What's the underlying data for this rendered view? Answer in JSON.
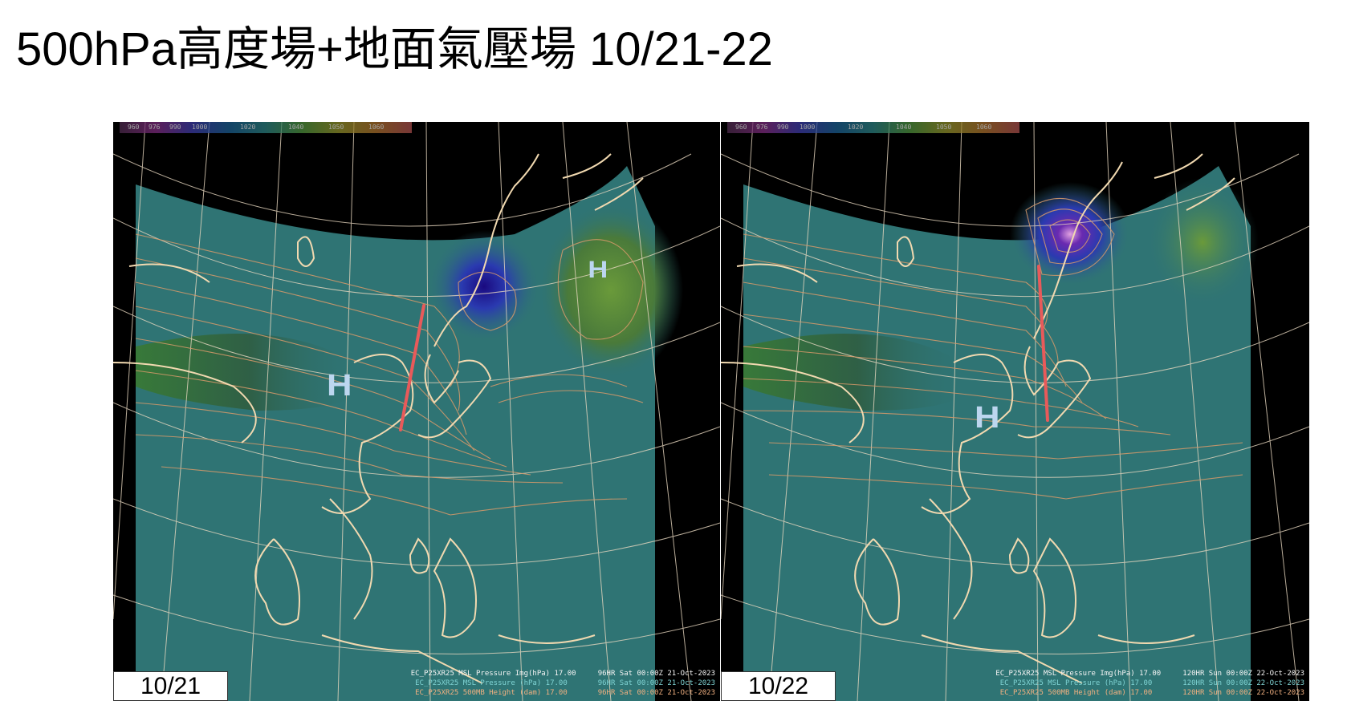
{
  "title": "500hPa高度場+地面氣壓場 10/21-22",
  "panels": [
    {
      "date_label": "10/21",
      "footer": [
        "EC_P25XR25 MSL Pressure Img(hPa) 17.00     96HR Sat 00:00Z 21-Oct-2023",
        "EC_P25XR25 MSL Pressure (hPa) 17.00       96HR Sat 00:00Z 21-Oct-2023",
        "EC_P25XR25 500MB Height (dam) 17.00       96HR Sat 00:00Z 21-Oct-2023"
      ],
      "annotations": [
        "H",
        "H"
      ],
      "colorbar": [
        "960",
        "976",
        "990",
        "1000",
        "1020",
        "1040",
        "1050",
        "1060"
      ]
    },
    {
      "date_label": "10/22",
      "footer": [
        "EC_P25XR25 MSL Pressure Img(hPa) 17.00     120HR Sun 00:00Z 22-Oct-2023",
        "EC_P25XR25 MSL Pressure (hPa) 17.00       120HR Sun 00:00Z 22-Oct-2023",
        "EC_P25XR25 500MB Height (dam) 17.00       120HR Sun 00:00Z 22-Oct-2023"
      ],
      "annotations": [
        "H"
      ],
      "colorbar": [
        "960",
        "976",
        "990",
        "1000",
        "1020",
        "1040",
        "1050",
        "1060"
      ]
    }
  ],
  "colors": {
    "ocean": "#2f7474",
    "coast": "#f1d9b0",
    "contour": "#d89a6a",
    "trough_line": "#e85a5a",
    "low_center": "#3a2aa0",
    "high_zone": "#5a8a3a",
    "annotation": "#bcd6ef"
  }
}
